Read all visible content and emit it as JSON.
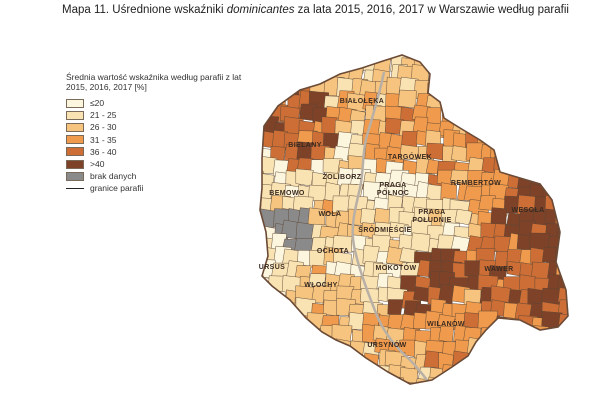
{
  "title": {
    "prefix": "Mapa 11. Uśrednione wskaźniki ",
    "emphasis": "dominicantes",
    "suffix": " za lata 2015, 2016, 2017 w Warszawie według parafii"
  },
  "legend": {
    "heading": "Średnia wartość wskaźnika według parafii z lat 2015, 2016, 2017 [%]",
    "classes": [
      {
        "label": "≤20",
        "color": "#fdf6df"
      },
      {
        "label": "21 - 25",
        "color": "#f9e3b3"
      },
      {
        "label": "26 - 30",
        "color": "#f6c47e"
      },
      {
        "label": "31 - 35",
        "color": "#ef9a4c"
      },
      {
        "label": "36 - 40",
        "color": "#cc6e35"
      },
      {
        "label": ">40",
        "color": "#7d4228"
      },
      {
        "label": "brak danych",
        "color": "#8a8a8a"
      }
    ],
    "boundary_label": "granice parafii",
    "boundary_color": "#222222"
  },
  "districts": [
    {
      "name": "BIAŁOŁĘKA",
      "cls": 2
    },
    {
      "name": "BIELANY",
      "cls": 4
    },
    {
      "name": "TARGÓWEK",
      "cls": 3
    },
    {
      "name": "ŻOLIBORZ",
      "cls": 1
    },
    {
      "name": "PRAGA PÓŁNOC",
      "cls": 0
    },
    {
      "name": "REMBERTÓW",
      "cls": 3
    },
    {
      "name": "BEMOWO",
      "cls": 1
    },
    {
      "name": "PRAGA POŁUDNIE",
      "cls": 1
    },
    {
      "name": "WOLA",
      "cls": 2
    },
    {
      "name": "WESOŁA",
      "cls": 5
    },
    {
      "name": "ŚRÓDMIEŚCIE",
      "cls": 1
    },
    {
      "name": "OCHOTA",
      "cls": 1
    },
    {
      "name": "URSUS",
      "cls": 1
    },
    {
      "name": "MOKOTÓW",
      "cls": 1
    },
    {
      "name": "WAWER",
      "cls": 4
    },
    {
      "name": "WŁOCHY",
      "cls": 2
    },
    {
      "name": "WILANÓW",
      "cls": 3
    },
    {
      "name": "URSYNÓW",
      "cls": 2
    }
  ]
}
